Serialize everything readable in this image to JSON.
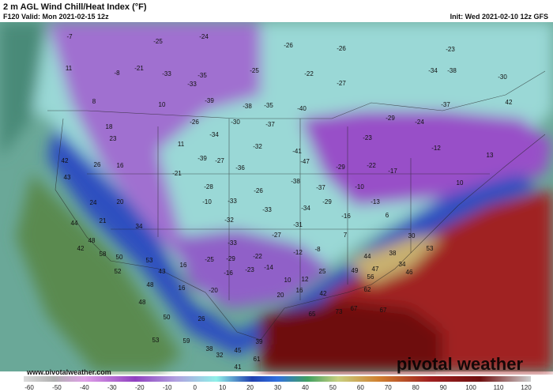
{
  "header": {
    "title": "2 m AGL Wind Chill/Heat Index (°F)",
    "valid": "F120 Valid: Mon 2021-02-15 12z",
    "init": "Init: Wed 2021-02-10 12z GFS"
  },
  "footer": {
    "url": "www.pivotalweather.com",
    "brand": "pivotal weather"
  },
  "colorbar": {
    "ticks": [
      -60,
      -50,
      -40,
      -30,
      -20,
      -10,
      0,
      10,
      20,
      30,
      40,
      50,
      60,
      70,
      80,
      90,
      100,
      110,
      120
    ]
  },
  "map": {
    "labels": [
      -7,
      -25,
      -24,
      -26,
      -26,
      -23,
      -34,
      -38,
      -30,
      11,
      -8,
      -21,
      -33,
      -35,
      -25,
      -22,
      -27,
      -33,
      -37,
      42,
      8,
      10,
      -39,
      -38,
      -35,
      -40,
      18,
      -26,
      -30,
      -37,
      -29,
      -24,
      23,
      11,
      -34,
      -32,
      -41,
      -23,
      -12,
      13,
      42,
      26,
      16,
      -39,
      -27,
      -36,
      -47,
      -29,
      -22,
      -17,
      43,
      -21,
      -38,
      -37,
      -10,
      10,
      24,
      20,
      -28,
      -26,
      -33,
      -33,
      -34,
      -29,
      -16,
      6,
      44,
      21,
      -10,
      -32,
      -31,
      -13,
      48,
      34,
      42,
      58,
      50,
      53,
      -33,
      -27,
      7,
      -8,
      30,
      53,
      -29,
      -22,
      -12,
      -25,
      44,
      49,
      47,
      38,
      34,
      46,
      52,
      16,
      43,
      48,
      -16,
      -23,
      -14,
      10,
      12,
      25,
      56,
      48,
      16,
      -20,
      20,
      16,
      42,
      62,
      67,
      65,
      73,
      50,
      26,
      53,
      59,
      38,
      45,
      32,
      61,
      41,
      39,
      67
    ]
  }
}
